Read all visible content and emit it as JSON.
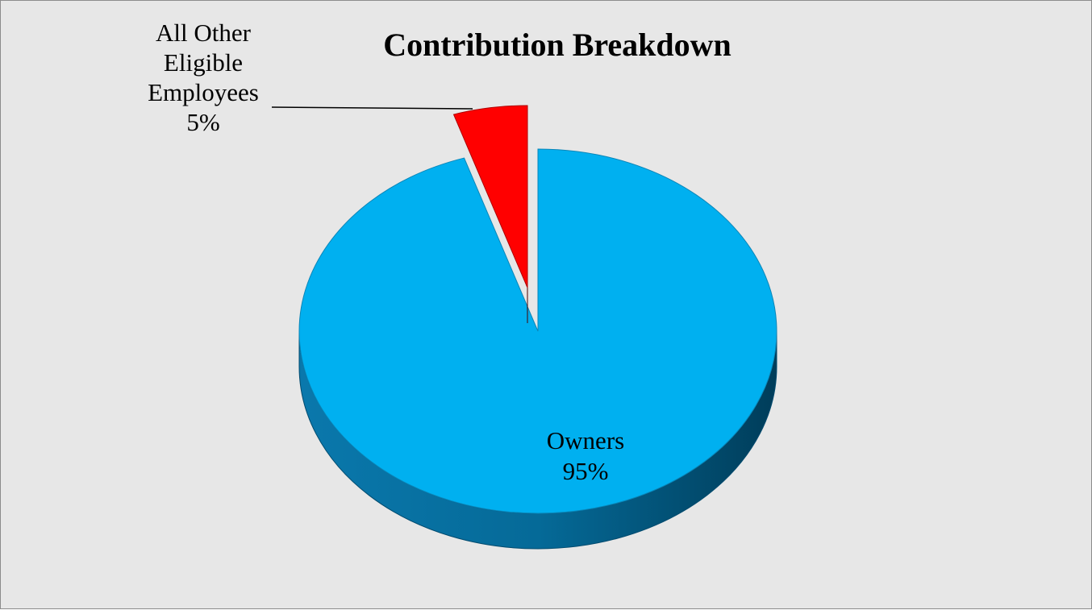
{
  "chart_data": {
    "type": "pie",
    "title": "Contribution Breakdown",
    "style": "3d-exploded",
    "slices": [
      {
        "name": "Owners",
        "value": 95,
        "label_lines": [
          "Owners",
          "95%"
        ],
        "color": "#00b0f0"
      },
      {
        "name": "All Other Eligible Employees",
        "value": 5,
        "label_lines": [
          "All Other",
          "Eligible",
          "Employees",
          "5%"
        ],
        "color": "#ff0000"
      }
    ],
    "legend": "none",
    "data_labels": "category-name-and-percentage"
  }
}
